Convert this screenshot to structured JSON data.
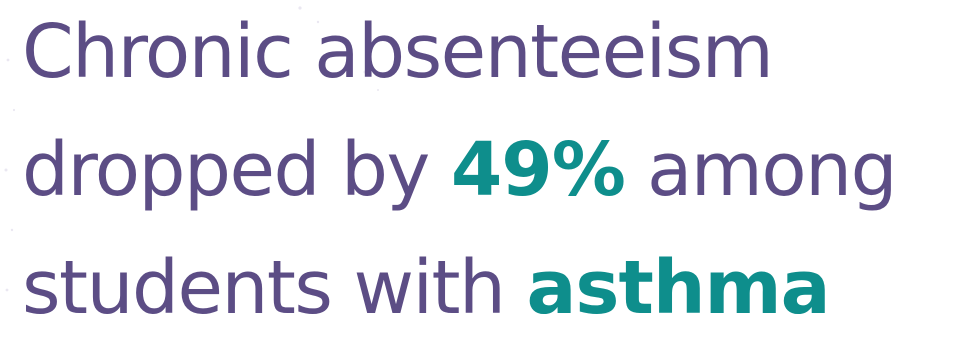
{
  "headline": {
    "line1": "Chronic absenteeism",
    "line2_prefix": "dropped by ",
    "percent": "49%",
    "line2_suffix": " among",
    "line3_prefix": "students with ",
    "condition": "asthma"
  },
  "colors": {
    "text": "#5c4d85",
    "highlight": "#0e8e8c",
    "background": "#ffffff"
  }
}
